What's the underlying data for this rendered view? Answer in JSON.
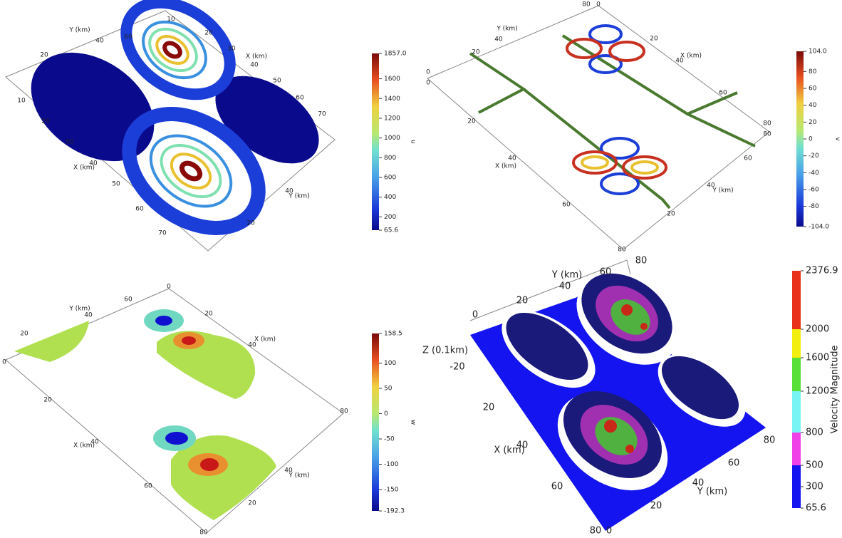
{
  "panels": [
    {
      "labels": [
        "60",
        "10",
        "20",
        "30",
        "40",
        "50",
        "60",
        "70",
        "X (km)",
        "Y (km)",
        "40",
        "20",
        "10",
        "20",
        "30",
        "X (km)",
        "40",
        "50",
        "60",
        "70",
        "40",
        "Y (km)",
        "20"
      ],
      "colorbar": {
        "title": "u",
        "ticks": [
          {
            "value": 1857,
            "label": "1857.0"
          },
          1600,
          1400,
          1200,
          1000,
          800,
          600,
          400,
          200,
          65.6
        ]
      }
    },
    {
      "labels": [
        "80",
        "0",
        "Y (km)",
        "40",
        "20",
        "0",
        "0",
        "X (km)",
        "20",
        "40",
        "60",
        "80",
        "80",
        "20",
        "X (km)",
        "40",
        "60",
        "80",
        "20",
        "40",
        "Y (km)",
        "60"
      ],
      "colorbar": {
        "title": "v",
        "ticks": [
          {
            "value": 104,
            "label": "104.0"
          },
          80,
          60,
          40,
          20,
          0,
          -20,
          -40,
          -60,
          -80,
          {
            "value": -104,
            "label": "-104.0"
          }
        ]
      }
    },
    {
      "labels": [
        "60",
        "0",
        "Y (km)",
        "40",
        "20",
        "0",
        "20",
        "X (km)",
        "40",
        "20",
        "80",
        "X (km)",
        "40",
        "60",
        "80",
        "20",
        "40",
        "Y (km)"
      ],
      "colorbar": {
        "title": "w",
        "ticks": [
          158.5,
          100,
          50,
          0,
          -50,
          -100,
          -150,
          -192.3
        ]
      }
    },
    {
      "labels": [
        "Y (km)",
        "60",
        "80",
        "40",
        "20",
        "0",
        "Z (0.1km)",
        "-20",
        "20",
        "X (km)",
        "40",
        "60",
        "80",
        "0",
        "20",
        "Y (km)",
        "40",
        "60",
        "80"
      ],
      "colorbar": {
        "title": "Velocity Magnitude",
        "ticks": [
          2376.9,
          2000,
          1600,
          1200,
          800,
          500,
          300,
          65.6
        ],
        "band_colors": [
          "#e8301c",
          "#f2ee10",
          "#58e038",
          "#78f4f4",
          "#f040e8",
          "#1414f0",
          "#1414f0"
        ]
      }
    }
  ]
}
